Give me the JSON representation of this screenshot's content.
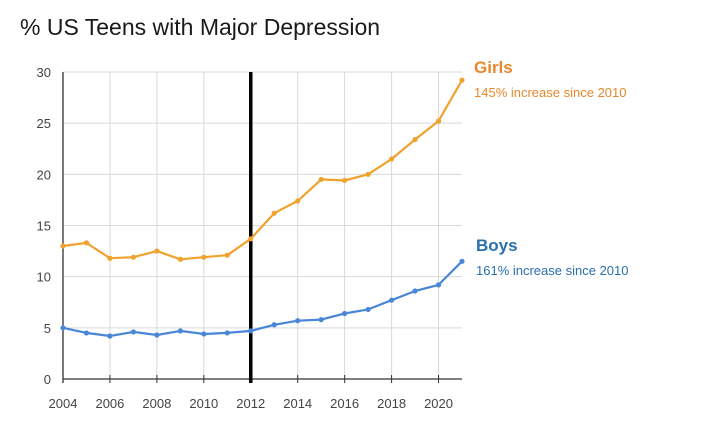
{
  "chart_data": {
    "type": "line",
    "title": "% US Teens with Major Depression",
    "xlabel": "",
    "ylabel": "",
    "xlim": [
      2004,
      2021
    ],
    "ylim": [
      0,
      30
    ],
    "x_ticks": [
      2004,
      2006,
      2008,
      2010,
      2012,
      2014,
      2016,
      2018,
      2020
    ],
    "y_ticks": [
      0,
      5,
      10,
      15,
      20,
      25,
      30
    ],
    "grid": true,
    "legend": "right, inline labels",
    "vertical_marker": 2012,
    "x": [
      2004,
      2005,
      2006,
      2007,
      2008,
      2009,
      2010,
      2011,
      2012,
      2013,
      2014,
      2015,
      2016,
      2017,
      2018,
      2019,
      2020,
      2021
    ],
    "series": [
      {
        "name": "Girls",
        "note": "145% increase since 2010",
        "color": "#f0a22e",
        "values": [
          13.0,
          13.3,
          11.8,
          11.9,
          12.5,
          11.7,
          11.9,
          12.1,
          13.7,
          16.2,
          17.4,
          19.5,
          19.4,
          20.0,
          21.5,
          23.4,
          25.2,
          29.2
        ]
      },
      {
        "name": "Boys",
        "note": "161% increase since 2010",
        "color": "#4a86d8",
        "values": [
          5.0,
          4.5,
          4.2,
          4.6,
          4.3,
          4.7,
          4.4,
          4.5,
          4.7,
          5.3,
          5.7,
          5.8,
          6.4,
          6.8,
          7.7,
          8.6,
          9.2,
          11.5
        ]
      }
    ]
  },
  "label_colors": {
    "Girls": "#e8872b",
    "Boys": "#2a6fae"
  }
}
